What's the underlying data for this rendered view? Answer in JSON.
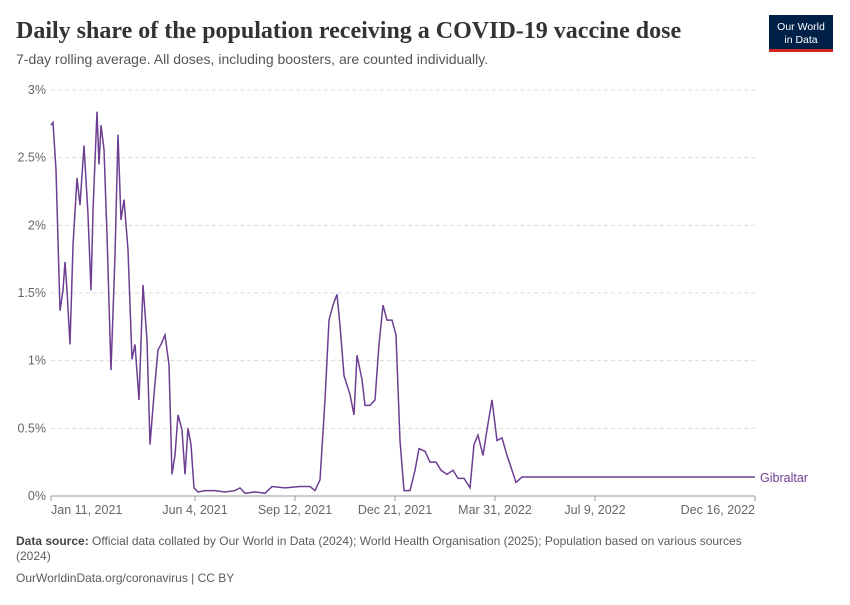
{
  "chart_data": {
    "type": "line",
    "title": "Daily share of the population receiving a COVID-19 vaccine dose",
    "subtitle": "7-day rolling average. All doses, including boosters, are counted individually.",
    "logo": [
      "Our World",
      "in Data"
    ],
    "source_label": "Data source:",
    "source_text": [
      "Official data collated by Our World in Data (2024); World Health Organisation (2025); Population based on various sources",
      "(2024)"
    ],
    "url": "OurWorldinData.org/coronavirus | CC BY",
    "xlim": [
      "2021-01-11",
      "2022-12-16"
    ],
    "xticks": [
      {
        "value": "2021-01-11",
        "label": "Jan 11, 2021"
      },
      {
        "value": "2021-06-04",
        "label": "Jun 4, 2021"
      },
      {
        "value": "2021-09-12",
        "label": "Sep 12, 2021"
      },
      {
        "value": "2021-12-21",
        "label": "Dec 21, 2021"
      },
      {
        "value": "2022-03-31",
        "label": "Mar 31, 2022"
      },
      {
        "value": "2022-07-09",
        "label": "Jul 9, 2022"
      },
      {
        "value": "2022-12-16",
        "label": "Dec 16, 2022"
      }
    ],
    "ylim": [
      0,
      3
    ],
    "yticks": [
      {
        "value": 0,
        "label": "0%"
      },
      {
        "value": 0.5,
        "label": "0.5%"
      },
      {
        "value": 1,
        "label": "1%"
      },
      {
        "value": 1.5,
        "label": "1.5%"
      },
      {
        "value": 2,
        "label": "2%"
      },
      {
        "value": 2.5,
        "label": "2.5%"
      },
      {
        "value": 3,
        "label": "3%"
      }
    ],
    "grid": true,
    "x": [
      "2021-01-11",
      "2021-01-13",
      "2021-01-16",
      "2021-01-20",
      "2021-01-23",
      "2021-01-25",
      "2021-01-27",
      "2021-01-30",
      "2021-02-02",
      "2021-02-06",
      "2021-02-09",
      "2021-02-13",
      "2021-02-17",
      "2021-02-20",
      "2021-02-22",
      "2021-02-26",
      "2021-02-28",
      "2021-03-02",
      "2021-03-05",
      "2021-03-08",
      "2021-03-12",
      "2021-03-16",
      "2021-03-19",
      "2021-03-22",
      "2021-03-25",
      "2021-03-29",
      "2021-04-02",
      "2021-04-05",
      "2021-04-09",
      "2021-04-13",
      "2021-04-17",
      "2021-04-20",
      "2021-04-24",
      "2021-04-28",
      "2021-05-01",
      "2021-05-05",
      "2021-05-09",
      "2021-05-12",
      "2021-05-15",
      "2021-05-18",
      "2021-05-22",
      "2021-05-25",
      "2021-05-28",
      "2021-05-31",
      "2021-06-03",
      "2021-06-07",
      "2021-06-14",
      "2021-06-24",
      "2021-07-04",
      "2021-07-14",
      "2021-07-19",
      "2021-07-24",
      "2021-08-03",
      "2021-08-13",
      "2021-08-20",
      "2021-09-02",
      "2021-09-17",
      "2021-09-27",
      "2021-10-02",
      "2021-10-07",
      "2021-10-12",
      "2021-10-16",
      "2021-10-20",
      "2021-10-24",
      "2021-10-27",
      "2021-10-31",
      "2021-11-06",
      "2021-11-10",
      "2021-11-13",
      "2021-11-18",
      "2021-11-21",
      "2021-11-26",
      "2021-12-01",
      "2021-12-05",
      "2021-12-09",
      "2021-12-13",
      "2021-12-18",
      "2021-12-22",
      "2021-12-26",
      "2021-12-30",
      "2022-01-05",
      "2022-01-10",
      "2022-01-14",
      "2022-01-20",
      "2022-01-25",
      "2022-01-31",
      "2022-02-05",
      "2022-02-11",
      "2022-02-17",
      "2022-02-22",
      "2022-02-28",
      "2022-03-06",
      "2022-03-10",
      "2022-03-14",
      "2022-03-19",
      "2022-03-23",
      "2022-03-28",
      "2022-04-02",
      "2022-04-07",
      "2022-04-12",
      "2022-04-17",
      "2022-04-21",
      "2022-04-27",
      "2022-12-16"
    ],
    "series": [
      {
        "name": "Gibraltar",
        "color": "#6d3e91",
        "values": [
          2.74,
          2.76,
          2.41,
          1.37,
          1.52,
          1.73,
          1.52,
          1.12,
          1.85,
          2.35,
          2.15,
          2.59,
          2.08,
          1.52,
          2.11,
          2.84,
          2.45,
          2.74,
          2.56,
          1.93,
          0.93,
          1.78,
          2.67,
          2.04,
          2.19,
          1.82,
          1.01,
          1.12,
          0.71,
          1.56,
          1.15,
          0.38,
          0.75,
          1.08,
          1.12,
          1.19,
          0.97,
          0.16,
          0.3,
          0.6,
          0.49,
          0.16,
          0.5,
          0.38,
          0.06,
          0.03,
          0.04,
          0.04,
          0.03,
          0.04,
          0.06,
          0.02,
          0.03,
          0.02,
          0.07,
          0.06,
          0.07,
          0.07,
          0.04,
          0.12,
          0.71,
          1.3,
          1.41,
          1.49,
          1.26,
          0.89,
          0.75,
          0.6,
          1.04,
          0.86,
          0.67,
          0.67,
          0.71,
          1.12,
          1.41,
          1.3,
          1.3,
          1.19,
          0.41,
          0.04,
          0.04,
          0.19,
          0.35,
          0.33,
          0.25,
          0.25,
          0.19,
          0.16,
          0.19,
          0.13,
          0.13,
          0.06,
          0.38,
          0.45,
          0.3,
          0.49,
          0.71,
          0.41,
          0.43,
          0.3,
          0.19,
          0.1,
          0.14,
          0.14
        ]
      }
    ]
  }
}
